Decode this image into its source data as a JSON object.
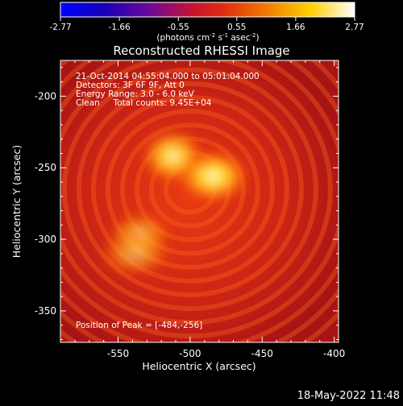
{
  "colorbar": {
    "ticks": [
      "-2.77",
      "-1.66",
      "-0.55",
      "0.55",
      "1.66",
      "2.77"
    ],
    "range": [
      -2.77,
      2.77
    ],
    "units_label": "(photons cm",
    "units_sup1": "-2",
    "units_mid": " s",
    "units_sup2": "-1",
    "units_tail": " asec",
    "units_sup3": "-2",
    "units_end": ")"
  },
  "plot": {
    "title": "Reconstructed RHESSI Image",
    "annotations": [
      "21-Oct-2014 04:55:04.000 to 05:01:04.000",
      "Detectors: 3F 6F 9F, Att 0",
      "Energy Range: 3.0 - 6.0 keV",
      "Clean     Total counts: 9.45E+04"
    ],
    "peak_label": "Position of Peak = [-484,-256]"
  },
  "footer": {
    "date_label": "18-May-2022 11:48"
  },
  "chart_data": {
    "type": "heatmap",
    "title": "Reconstructed RHESSI Image",
    "xlabel": "Heliocentric X (arcsec)",
    "ylabel": "Heliocentric Y (arcsec)",
    "xlim": [
      -590,
      -397
    ],
    "ylim": [
      -372,
      -175
    ],
    "xticks": [
      "-550",
      "-500",
      "-450",
      "-400"
    ],
    "yticks": [
      "-200",
      "-250",
      "-300",
      "-350"
    ],
    "xtick_values": [
      -550,
      -500,
      -450,
      -400
    ],
    "ytick_values": [
      -200,
      -250,
      -300,
      -350
    ],
    "peak": [
      -484,
      -256
    ],
    "sources": [
      {
        "x": -512,
        "y": -242,
        "rx": 14,
        "ry": 12,
        "peak_value": 2.6
      },
      {
        "x": -484,
        "y": -256,
        "rx": 16,
        "ry": 12,
        "peak_value": 2.77
      },
      {
        "x": -535,
        "y": -297,
        "rx": 14,
        "ry": 10,
        "peak_value": 1.7
      },
      {
        "x": -538,
        "y": -310,
        "rx": 16,
        "ry": 10,
        "peak_value": 1.5
      }
    ],
    "colormap": "rainbow-blue-purple-red-yellow-white",
    "colorbar_range": [
      -2.77,
      2.77
    ]
  }
}
